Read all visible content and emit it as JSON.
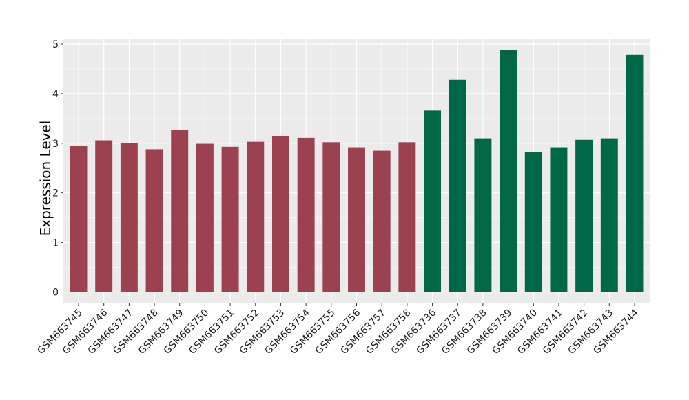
{
  "chart_data": {
    "type": "bar",
    "title": "",
    "xlabel": "",
    "ylabel": "Expression Level",
    "ylim": [
      0,
      5.2
    ],
    "yticks": [
      0,
      1,
      2,
      3,
      4,
      5
    ],
    "grid": true,
    "legend": "none",
    "colors": {
      "group1": "#9b4150",
      "group2": "#006847",
      "panel": "#ebebeb",
      "grid": "#ffffff"
    },
    "categories": [
      "GSM663745",
      "GSM663746",
      "GSM663747",
      "GSM663748",
      "GSM663749",
      "GSM663750",
      "GSM663751",
      "GSM663752",
      "GSM663753",
      "GSM663754",
      "GSM663755",
      "GSM663756",
      "GSM663757",
      "GSM663758",
      "GSM663736",
      "GSM663737",
      "GSM663738",
      "GSM663739",
      "GSM663740",
      "GSM663741",
      "GSM663742",
      "GSM663743",
      "GSM663744"
    ],
    "values": [
      2.95,
      3.06,
      3.0,
      2.88,
      3.27,
      2.99,
      2.93,
      3.03,
      3.15,
      3.11,
      3.02,
      2.92,
      2.85,
      3.02,
      3.66,
      4.28,
      3.1,
      4.88,
      2.82,
      2.92,
      3.07,
      3.1,
      4.78
    ],
    "groups": [
      "group1",
      "group1",
      "group1",
      "group1",
      "group1",
      "group1",
      "group1",
      "group1",
      "group1",
      "group1",
      "group1",
      "group1",
      "group1",
      "group1",
      "group2",
      "group2",
      "group2",
      "group2",
      "group2",
      "group2",
      "group2",
      "group2",
      "group2"
    ]
  }
}
